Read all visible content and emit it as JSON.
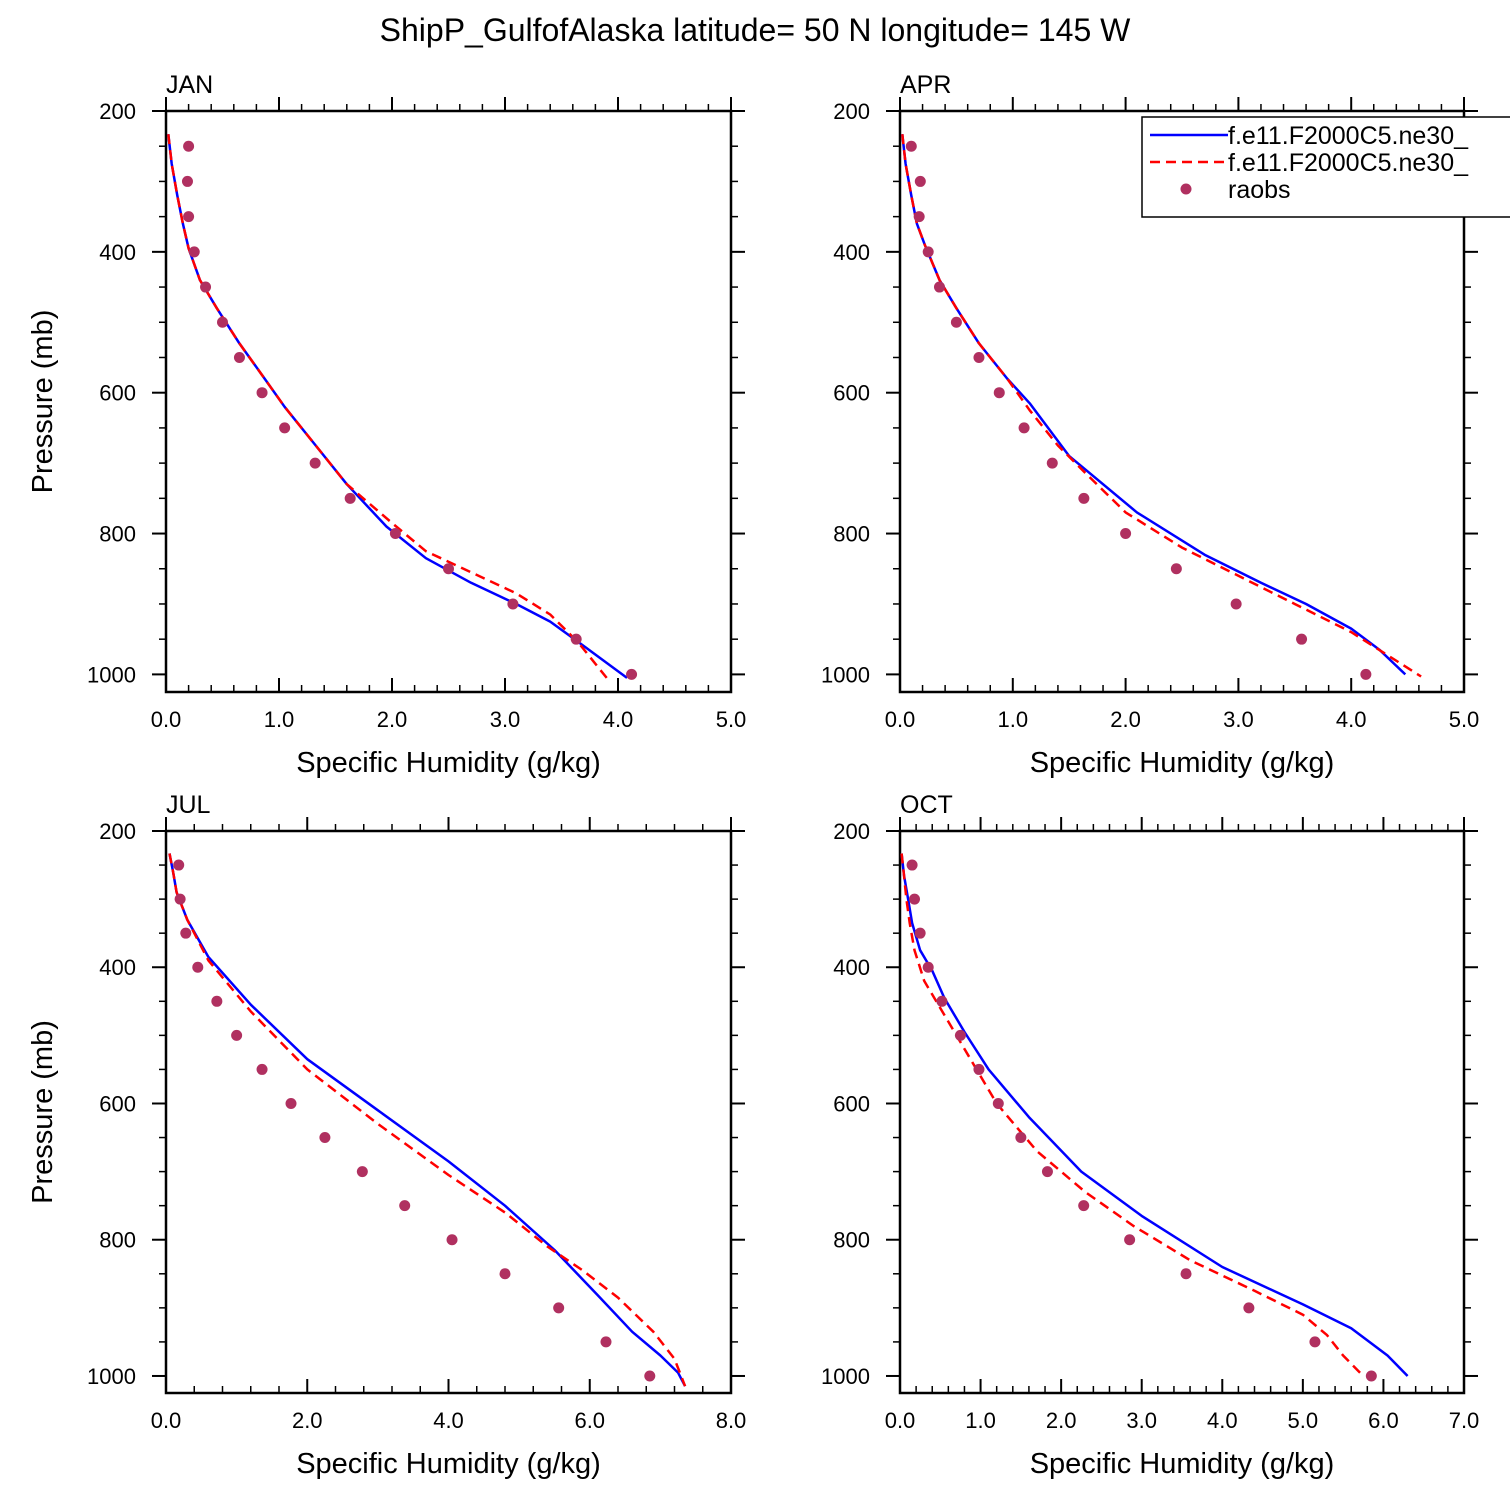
{
  "title": "ShipP_GulfofAlaska  latitude= 50 N longitude= 145 W",
  "legend": {
    "placement": "top-right of APR panel",
    "entries": [
      {
        "label": "f.e11.F2000C5.ne30_",
        "style": "solid",
        "color": "#0000ff"
      },
      {
        "label": "f.e11.F2000C5.ne30_",
        "style": "dashed",
        "color": "#ff0000"
      },
      {
        "label": "raobs",
        "style": "dots",
        "color": "#b03060"
      }
    ]
  },
  "chart_data": [
    {
      "type": "line",
      "panel": "JAN",
      "xlabel": "Specific Humidity (g/kg)",
      "ylabel": "Pressure (mb)",
      "xlim": [
        0,
        5
      ],
      "ylim": [
        200,
        1025
      ],
      "y_reversed": true,
      "xticks": [
        "0.0",
        "1.0",
        "2.0",
        "3.0",
        "4.0",
        "5.0"
      ],
      "yticks": [
        "200",
        "400",
        "600",
        "800",
        "1000"
      ],
      "series": [
        {
          "style": "solid",
          "color": "#0000ff",
          "x": [
            0.02,
            0.05,
            0.1,
            0.15,
            0.2,
            0.3,
            0.45,
            0.65,
            0.85,
            1.05,
            1.3,
            1.6,
            1.95,
            2.3,
            2.7,
            3.1,
            3.4,
            3.7,
            4.08
          ],
          "y": [
            233,
            275,
            320,
            360,
            395,
            440,
            480,
            530,
            575,
            620,
            670,
            730,
            790,
            835,
            870,
            900,
            925,
            960,
            1005
          ]
        },
        {
          "style": "dashed",
          "color": "#ff0000",
          "x": [
            0.02,
            0.05,
            0.1,
            0.15,
            0.2,
            0.3,
            0.45,
            0.65,
            0.85,
            1.05,
            1.3,
            1.6,
            2.0,
            2.3,
            2.7,
            3.1,
            3.4,
            3.65,
            3.9
          ],
          "y": [
            233,
            275,
            320,
            360,
            395,
            440,
            480,
            530,
            575,
            620,
            670,
            730,
            785,
            825,
            855,
            885,
            915,
            955,
            1005
          ]
        },
        {
          "style": "dots",
          "color": "#b03060",
          "x": [
            0.2,
            0.19,
            0.2,
            0.25,
            0.35,
            0.5,
            0.65,
            0.85,
            1.05,
            1.32,
            1.63,
            2.03,
            2.5,
            3.07,
            3.63,
            4.12
          ],
          "y": [
            250,
            300,
            350,
            400,
            450,
            500,
            550,
            600,
            650,
            700,
            750,
            800,
            850,
            900,
            950,
            1000
          ]
        }
      ]
    },
    {
      "type": "line",
      "panel": "APR",
      "xlabel": "Specific Humidity (g/kg)",
      "ylabel": "",
      "xlim": [
        0,
        5
      ],
      "ylim": [
        200,
        1025
      ],
      "y_reversed": true,
      "xticks": [
        "0.0",
        "1.0",
        "2.0",
        "3.0",
        "4.0",
        "5.0"
      ],
      "yticks": [
        "200",
        "400",
        "600",
        "800",
        "1000"
      ],
      "series": [
        {
          "style": "solid",
          "color": "#0000ff",
          "x": [
            0.02,
            0.05,
            0.1,
            0.15,
            0.22,
            0.35,
            0.5,
            0.7,
            0.95,
            1.15,
            1.5,
            2.1,
            2.7,
            3.2,
            3.6,
            4.0,
            4.25,
            4.48
          ],
          "y": [
            233,
            275,
            320,
            360,
            390,
            440,
            480,
            530,
            580,
            615,
            690,
            770,
            830,
            870,
            900,
            935,
            965,
            1000
          ]
        },
        {
          "style": "dashed",
          "color": "#ff0000",
          "x": [
            0.02,
            0.05,
            0.1,
            0.15,
            0.22,
            0.35,
            0.5,
            0.7,
            0.95,
            1.15,
            1.4,
            1.65,
            2.0,
            2.5,
            3.0,
            3.5,
            4.0,
            4.62
          ],
          "y": [
            233,
            275,
            320,
            360,
            390,
            440,
            480,
            530,
            580,
            625,
            675,
            715,
            770,
            820,
            860,
            900,
            940,
            1003
          ]
        },
        {
          "style": "dots",
          "color": "#b03060",
          "x": [
            0.1,
            0.18,
            0.17,
            0.25,
            0.35,
            0.5,
            0.7,
            0.88,
            1.1,
            1.35,
            1.63,
            2.0,
            2.45,
            2.98,
            3.56,
            4.13
          ],
          "y": [
            250,
            300,
            350,
            400,
            450,
            500,
            550,
            600,
            650,
            700,
            750,
            800,
            850,
            900,
            950,
            1000
          ]
        }
      ]
    },
    {
      "type": "line",
      "panel": "JUL",
      "xlabel": "Specific Humidity (g/kg)",
      "ylabel": "Pressure (mb)",
      "xlim": [
        0,
        8
      ],
      "ylim": [
        200,
        1025
      ],
      "y_reversed": true,
      "xticks": [
        "0.0",
        "2.0",
        "4.0",
        "6.0",
        "8.0"
      ],
      "yticks": [
        "200",
        "400",
        "600",
        "800",
        "1000"
      ],
      "series": [
        {
          "style": "solid",
          "color": "#0000ff",
          "x": [
            0.05,
            0.1,
            0.15,
            0.3,
            0.6,
            1.2,
            2.0,
            3.0,
            4.0,
            4.8,
            5.5,
            6.1,
            6.6,
            7.0,
            7.25,
            7.35
          ],
          "y": [
            233,
            260,
            290,
            330,
            385,
            455,
            535,
            610,
            685,
            750,
            815,
            880,
            935,
            970,
            995,
            1015
          ]
        },
        {
          "style": "dashed",
          "color": "#ff0000",
          "x": [
            0.05,
            0.1,
            0.15,
            0.3,
            0.6,
            1.2,
            2.0,
            3.0,
            4.0,
            4.8,
            5.4,
            5.9,
            6.4,
            6.9,
            7.2,
            7.35
          ],
          "y": [
            233,
            260,
            290,
            330,
            390,
            465,
            550,
            630,
            705,
            760,
            810,
            845,
            885,
            935,
            975,
            1015
          ]
        },
        {
          "style": "dots",
          "color": "#b03060",
          "x": [
            0.18,
            0.2,
            0.28,
            0.45,
            0.72,
            1.0,
            1.36,
            1.77,
            2.25,
            2.78,
            3.38,
            4.05,
            4.8,
            5.56,
            6.23,
            6.85
          ],
          "y": [
            250,
            300,
            350,
            400,
            450,
            500,
            550,
            600,
            650,
            700,
            750,
            800,
            850,
            900,
            950,
            1000
          ]
        }
      ]
    },
    {
      "type": "line",
      "panel": "OCT",
      "xlabel": "Specific Humidity (g/kg)",
      "ylabel": "",
      "xlim": [
        0,
        7
      ],
      "ylim": [
        200,
        1025
      ],
      "y_reversed": true,
      "xticks": [
        "0.0",
        "1.0",
        "2.0",
        "3.0",
        "4.0",
        "5.0",
        "6.0",
        "7.0"
      ],
      "yticks": [
        "200",
        "400",
        "600",
        "800",
        "1000"
      ],
      "series": [
        {
          "style": "solid",
          "color": "#0000ff",
          "x": [
            0.02,
            0.05,
            0.1,
            0.15,
            0.25,
            0.4,
            0.55,
            0.8,
            1.1,
            1.6,
            2.25,
            3.0,
            4.0,
            5.0,
            5.6,
            6.05,
            6.3
          ],
          "y": [
            233,
            265,
            300,
            335,
            375,
            405,
            445,
            495,
            550,
            620,
            700,
            765,
            840,
            895,
            930,
            970,
            1000
          ]
        },
        {
          "style": "dashed",
          "color": "#ff0000",
          "x": [
            0.02,
            0.05,
            0.08,
            0.12,
            0.18,
            0.3,
            0.5,
            0.8,
            1.2,
            1.7,
            2.3,
            2.9,
            3.6,
            4.4,
            5.0,
            5.3,
            5.5,
            5.75
          ],
          "y": [
            233,
            265,
            300,
            335,
            375,
            420,
            460,
            520,
            600,
            670,
            730,
            780,
            830,
            875,
            910,
            940,
            970,
            1000
          ]
        },
        {
          "style": "dots",
          "color": "#b03060",
          "x": [
            0.15,
            0.18,
            0.25,
            0.35,
            0.52,
            0.75,
            0.98,
            1.22,
            1.5,
            1.83,
            2.28,
            2.85,
            3.55,
            4.33,
            5.15,
            5.85
          ],
          "y": [
            250,
            300,
            350,
            400,
            450,
            500,
            550,
            600,
            650,
            700,
            750,
            800,
            850,
            900,
            950,
            1000
          ]
        }
      ]
    }
  ]
}
